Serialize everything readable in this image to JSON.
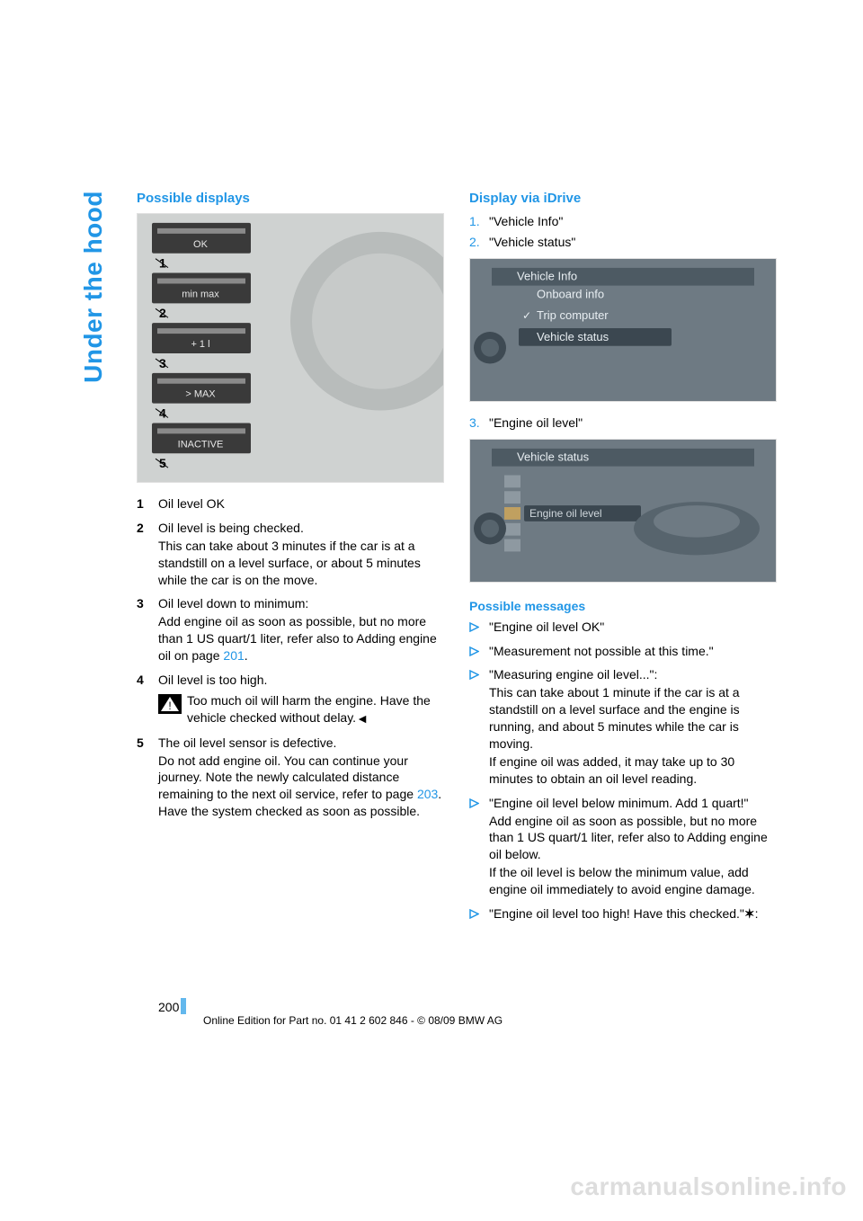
{
  "sideTab": "Under the hood",
  "left": {
    "heading": "Possible displays",
    "cluster": {
      "labels": [
        "1",
        "2",
        "3",
        "4",
        "5"
      ],
      "display_text": [
        "OK",
        "min       max",
        "+ 1 l",
        "> MAX",
        "INACTIVE"
      ],
      "bg": "#cfd2d1",
      "numRows": 5,
      "label_fontsize": 12
    },
    "legend": [
      {
        "n": "1",
        "lines": [
          "Oil level OK"
        ]
      },
      {
        "n": "2",
        "lines": [
          "Oil level is being checked.",
          "This can take about 3 minutes if the car is at a standstill on a level surface, or about 5 minutes while the car is on the move."
        ]
      },
      {
        "n": "3",
        "lines": [
          "Oil level down to minimum:",
          "Add engine oil as soon as possible, but no more than 1 US quart/1 liter, refer also to Adding engine oil on page "
        ],
        "link": "201",
        "tail": "."
      },
      {
        "n": "4",
        "lines": [
          "Oil level is too high."
        ],
        "warn": "Too much oil will harm the engine. Have the vehicle checked without delay."
      },
      {
        "n": "5",
        "lines": [
          "The oil level sensor is defective.",
          "Do not add engine oil. You can continue your journey. Note the newly calculated distance remaining to the next oil service, refer to page "
        ],
        "link": "203",
        "tail": ". Have the system checked as soon as possible."
      }
    ]
  },
  "right": {
    "heading": "Display via iDrive",
    "steps_a": [
      {
        "n": "1.",
        "t": "\"Vehicle Info\""
      },
      {
        "n": "2.",
        "t": "\"Vehicle status\""
      }
    ],
    "idrive1": {
      "title": "Vehicle Info",
      "items": [
        "Onboard info",
        "Trip computer",
        "Vehicle status"
      ],
      "selected": 2,
      "checked": 1,
      "bg": "#6e7a83",
      "highlight": "#3b4750",
      "text": "#e8eef2"
    },
    "steps_b": [
      {
        "n": "3.",
        "t": "\"Engine oil level\""
      }
    ],
    "idrive2": {
      "title": "Vehicle status",
      "rowLabel": "Engine oil level",
      "bg": "#6e7a83",
      "highlight": "#3b4750",
      "text": "#e8eef2"
    },
    "possibleHeading": "Possible messages",
    "bullets": [
      {
        "lines": [
          "\"Engine oil level OK\""
        ]
      },
      {
        "lines": [
          "\"Measurement not possible at this time.\""
        ]
      },
      {
        "lines": [
          "\"Measuring engine oil level...\":",
          "This can take about 1 minute if the car is at a standstill on a level surface and the engine is running, and about 5 minutes while the car is moving.",
          "If engine oil was added, it may take up to 30 minutes to obtain an oil level reading."
        ]
      },
      {
        "lines": [
          "\"Engine oil level below minimum. Add 1 quart!\"",
          "Add engine oil as soon as possible, but no more than 1 US quart/1 liter, refer also to Adding engine oil below.",
          "If the oil level is below the minimum value, add engine oil immediately to avoid engine damage."
        ]
      },
      {
        "lines": [
          "\"Engine oil level too high! Have this checked.\""
        ],
        "star": true,
        "tail": ":"
      }
    ]
  },
  "pageNum": "200",
  "footer": "Online Edition for Part no. 01 41 2 602 846 - © 08/09 BMW AG",
  "watermark": "carmanualsonline.info"
}
